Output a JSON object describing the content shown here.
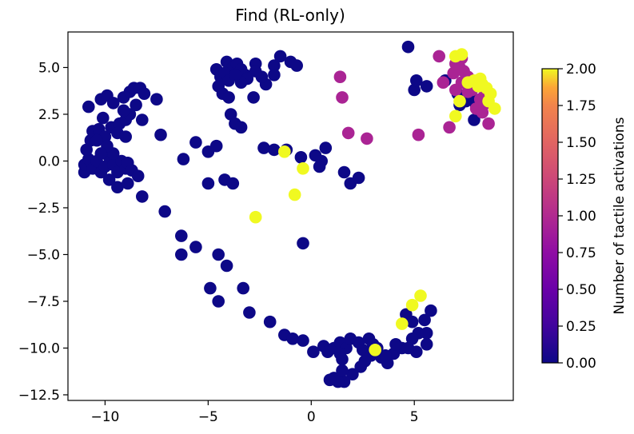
{
  "chart_data": {
    "type": "scatter",
    "title": "Find (RL-only)",
    "xlabel": "",
    "ylabel": "",
    "xlim": [
      -11.8,
      9.8
    ],
    "ylim": [
      -12.8,
      6.9
    ],
    "x_ticks": [
      -10,
      -5,
      0,
      5
    ],
    "x_tick_labels": [
      "−10",
      "−5",
      "0",
      "5"
    ],
    "y_ticks": [
      5.0,
      2.5,
      0.0,
      -2.5,
      -5.0,
      -7.5,
      -10.0,
      -12.5
    ],
    "y_tick_labels": [
      "5.0",
      "2.5",
      "0.0",
      "−2.5",
      "−5.0",
      "−7.5",
      "−10.0",
      "−12.5"
    ],
    "grid": false,
    "colorbar": {
      "label": "Number of tactile activations",
      "range": [
        0.0,
        2.0
      ],
      "ticks": [
        0.0,
        0.25,
        0.5,
        0.75,
        1.0,
        1.25,
        1.5,
        1.75,
        2.0
      ],
      "tick_labels": [
        "0.00",
        "0.25",
        "0.50",
        "0.75",
        "1.00",
        "1.25",
        "1.50",
        "1.75",
        "2.00"
      ],
      "colormap": "plasma"
    },
    "points": [
      {
        "x": -11.0,
        "y": -0.6,
        "c": 0
      },
      {
        "x": -11.0,
        "y": -0.2,
        "c": 0
      },
      {
        "x": -10.8,
        "y": 0.1,
        "c": 0
      },
      {
        "x": -10.6,
        "y": -0.4,
        "c": 0
      },
      {
        "x": -10.4,
        "y": 0.0,
        "c": 0
      },
      {
        "x": -10.2,
        "y": -0.6,
        "c": 0
      },
      {
        "x": -10.0,
        "y": -0.3,
        "c": 0
      },
      {
        "x": -9.8,
        "y": 0.2,
        "c": 0
      },
      {
        "x": -9.6,
        "y": -0.2,
        "c": 0
      },
      {
        "x": -9.4,
        "y": -0.6,
        "c": 0
      },
      {
        "x": -9.2,
        "y": 0.0,
        "c": 0
      },
      {
        "x": -9.0,
        "y": -0.4,
        "c": 0
      },
      {
        "x": -8.9,
        "y": -0.1,
        "c": 0
      },
      {
        "x": -8.7,
        "y": -0.5,
        "c": 0
      },
      {
        "x": -9.8,
        "y": -1.0,
        "c": 0
      },
      {
        "x": -9.4,
        "y": -1.4,
        "c": 0
      },
      {
        "x": -8.9,
        "y": -1.2,
        "c": 0
      },
      {
        "x": -8.4,
        "y": -0.8,
        "c": 0
      },
      {
        "x": -8.2,
        "y": -1.9,
        "c": 0
      },
      {
        "x": -9.6,
        "y": 0.4,
        "c": 0
      },
      {
        "x": -10.9,
        "y": 0.6,
        "c": 0
      },
      {
        "x": -10.7,
        "y": 1.1,
        "c": 0
      },
      {
        "x": -10.6,
        "y": 1.6,
        "c": 0
      },
      {
        "x": -10.3,
        "y": 1.7,
        "c": 0
      },
      {
        "x": -10.0,
        "y": 1.3,
        "c": 0
      },
      {
        "x": -9.7,
        "y": 1.8,
        "c": 0
      },
      {
        "x": -9.3,
        "y": 2.0,
        "c": 0
      },
      {
        "x": -9.0,
        "y": 2.2,
        "c": 0
      },
      {
        "x": -8.8,
        "y": 2.5,
        "c": 0
      },
      {
        "x": -9.1,
        "y": 2.7,
        "c": 0
      },
      {
        "x": -9.4,
        "y": 1.5,
        "c": 0
      },
      {
        "x": -9.0,
        "y": 1.3,
        "c": 0
      },
      {
        "x": -10.4,
        "y": 1.1,
        "c": 0
      },
      {
        "x": -9.9,
        "y": 0.8,
        "c": 0
      },
      {
        "x": -10.2,
        "y": 0.4,
        "c": 0
      },
      {
        "x": -10.8,
        "y": 2.9,
        "c": 0
      },
      {
        "x": -10.2,
        "y": 3.3,
        "c": 0
      },
      {
        "x": -9.9,
        "y": 3.5,
        "c": 0
      },
      {
        "x": -9.6,
        "y": 3.1,
        "c": 0
      },
      {
        "x": -9.1,
        "y": 3.4,
        "c": 0
      },
      {
        "x": -8.8,
        "y": 3.7,
        "c": 0
      },
      {
        "x": -8.6,
        "y": 3.9,
        "c": 0
      },
      {
        "x": -8.3,
        "y": 3.9,
        "c": 0
      },
      {
        "x": -8.1,
        "y": 3.6,
        "c": 0
      },
      {
        "x": -8.5,
        "y": 3.0,
        "c": 0
      },
      {
        "x": -8.2,
        "y": 2.2,
        "c": 0
      },
      {
        "x": -7.5,
        "y": 3.3,
        "c": 0
      },
      {
        "x": -10.1,
        "y": 2.3,
        "c": 0
      },
      {
        "x": -7.3,
        "y": 1.4,
        "c": 0
      },
      {
        "x": -7.1,
        "y": -2.7,
        "c": 0
      },
      {
        "x": -6.2,
        "y": 0.1,
        "c": 0
      },
      {
        "x": -5.6,
        "y": 1.0,
        "c": 0
      },
      {
        "x": -6.3,
        "y": -4.0,
        "c": 0
      },
      {
        "x": -6.3,
        "y": -5.0,
        "c": 0
      },
      {
        "x": -5.6,
        "y": -4.6,
        "c": 0
      },
      {
        "x": -5.0,
        "y": 0.5,
        "c": 0
      },
      {
        "x": -4.6,
        "y": 0.8,
        "c": 0
      },
      {
        "x": -5.0,
        "y": -1.2,
        "c": 0
      },
      {
        "x": -4.2,
        "y": -1.0,
        "c": 0
      },
      {
        "x": -3.8,
        "y": -1.2,
        "c": 0
      },
      {
        "x": -4.9,
        "y": -6.8,
        "c": 0
      },
      {
        "x": -4.5,
        "y": -7.5,
        "c": 0
      },
      {
        "x": -4.5,
        "y": -5.0,
        "c": 0
      },
      {
        "x": -4.1,
        "y": -5.6,
        "c": 0
      },
      {
        "x": -3.3,
        "y": -6.8,
        "c": 0
      },
      {
        "x": -3.0,
        "y": -8.1,
        "c": 0
      },
      {
        "x": -2.0,
        "y": -8.6,
        "c": 0
      },
      {
        "x": -1.3,
        "y": -9.3,
        "c": 0
      },
      {
        "x": -0.9,
        "y": -9.5,
        "c": 0
      },
      {
        "x": -0.4,
        "y": -9.6,
        "c": 0
      },
      {
        "x": -3.9,
        "y": 2.5,
        "c": 0
      },
      {
        "x": -3.7,
        "y": 2.0,
        "c": 0
      },
      {
        "x": -3.4,
        "y": 1.8,
        "c": 0
      },
      {
        "x": -2.8,
        "y": 3.4,
        "c": 0
      },
      {
        "x": -2.3,
        "y": 0.7,
        "c": 0
      },
      {
        "x": -1.8,
        "y": 0.6,
        "c": 0
      },
      {
        "x": -1.2,
        "y": 0.6,
        "c": 0
      },
      {
        "x": -0.5,
        "y": 0.2,
        "c": 0
      },
      {
        "x": 0.2,
        "y": 0.3,
        "c": 0
      },
      {
        "x": 0.5,
        "y": 0.0,
        "c": 0
      },
      {
        "x": 0.7,
        "y": 0.7,
        "c": 0
      },
      {
        "x": 0.4,
        "y": -0.3,
        "c": 0
      },
      {
        "x": 1.6,
        "y": -0.6,
        "c": 0
      },
      {
        "x": 1.9,
        "y": -1.2,
        "c": 0
      },
      {
        "x": 2.3,
        "y": -0.9,
        "c": 0
      },
      {
        "x": -2.2,
        "y": 4.1,
        "c": 0
      },
      {
        "x": -2.4,
        "y": 4.5,
        "c": 0
      },
      {
        "x": -1.8,
        "y": 5.1,
        "c": 0
      },
      {
        "x": -1.5,
        "y": 5.6,
        "c": 0
      },
      {
        "x": -1.8,
        "y": 4.6,
        "c": 0
      },
      {
        "x": -1.0,
        "y": 5.3,
        "c": 0
      },
      {
        "x": -0.7,
        "y": 5.1,
        "c": 0
      },
      {
        "x": -4.6,
        "y": 4.9,
        "c": 0
      },
      {
        "x": -4.4,
        "y": 4.5,
        "c": 0
      },
      {
        "x": -4.5,
        "y": 4.0,
        "c": 0
      },
      {
        "x": -4.3,
        "y": 3.6,
        "c": 0
      },
      {
        "x": -4.0,
        "y": 3.4,
        "c": 0
      },
      {
        "x": -4.1,
        "y": 5.3,
        "c": 0
      },
      {
        "x": -3.8,
        "y": 5.0,
        "c": 0
      },
      {
        "x": -3.6,
        "y": 5.2,
        "c": 0
      },
      {
        "x": -3.4,
        "y": 4.9,
        "c": 0
      },
      {
        "x": -3.2,
        "y": 4.6,
        "c": 0
      },
      {
        "x": -3.1,
        "y": 4.4,
        "c": 0
      },
      {
        "x": -3.4,
        "y": 4.2,
        "c": 0
      },
      {
        "x": -2.7,
        "y": 5.2,
        "c": 0
      },
      {
        "x": -2.7,
        "y": 4.8,
        "c": 0
      },
      {
        "x": -4.2,
        "y": 4.7,
        "c": 0
      },
      {
        "x": -4.0,
        "y": 4.3,
        "c": 0
      },
      {
        "x": -3.7,
        "y": 4.6,
        "c": 0
      },
      {
        "x": 4.7,
        "y": 6.1,
        "c": 0
      },
      {
        "x": 0.6,
        "y": -9.9,
        "c": 0
      },
      {
        "x": 0.8,
        "y": -10.2,
        "c": 0
      },
      {
        "x": 1.1,
        "y": -10.0,
        "c": 0
      },
      {
        "x": 1.4,
        "y": -9.7,
        "c": 0
      },
      {
        "x": 1.7,
        "y": -10.0,
        "c": 0
      },
      {
        "x": 1.4,
        "y": -10.3,
        "c": 0
      },
      {
        "x": 1.5,
        "y": -10.6,
        "c": 0
      },
      {
        "x": 1.9,
        "y": -9.5,
        "c": 0
      },
      {
        "x": 2.3,
        "y": -9.7,
        "c": 0
      },
      {
        "x": 2.5,
        "y": -10.1,
        "c": 0
      },
      {
        "x": 2.8,
        "y": -9.5,
        "c": 0
      },
      {
        "x": 3.0,
        "y": -9.8,
        "c": 0
      },
      {
        "x": 3.2,
        "y": -10.0,
        "c": 0
      },
      {
        "x": 2.9,
        "y": -10.4,
        "c": 0
      },
      {
        "x": 2.6,
        "y": -10.7,
        "c": 0
      },
      {
        "x": 2.4,
        "y": -11.0,
        "c": 0
      },
      {
        "x": 2.0,
        "y": -11.4,
        "c": 0
      },
      {
        "x": 1.6,
        "y": -11.8,
        "c": 0
      },
      {
        "x": 1.3,
        "y": -11.8,
        "c": 0
      },
      {
        "x": 1.1,
        "y": -11.6,
        "c": 0
      },
      {
        "x": 0.9,
        "y": -11.7,
        "c": 0
      },
      {
        "x": 1.5,
        "y": -11.2,
        "c": 0
      },
      {
        "x": 3.4,
        "y": -10.5,
        "c": 0
      },
      {
        "x": 3.7,
        "y": -10.8,
        "c": 0
      },
      {
        "x": 4.0,
        "y": -10.3,
        "c": 0
      },
      {
        "x": 4.4,
        "y": -10.0,
        "c": 0
      },
      {
        "x": 4.1,
        "y": -9.8,
        "c": 0
      },
      {
        "x": 4.6,
        "y": -8.2,
        "c": 0
      },
      {
        "x": 4.9,
        "y": -8.6,
        "c": 0
      },
      {
        "x": 5.2,
        "y": -9.2,
        "c": 0
      },
      {
        "x": 5.5,
        "y": -8.5,
        "c": 0
      },
      {
        "x": 5.6,
        "y": -9.2,
        "c": 0
      },
      {
        "x": 5.1,
        "y": -10.2,
        "c": 0
      },
      {
        "x": 4.7,
        "y": -10.0,
        "c": 0
      },
      {
        "x": 4.9,
        "y": -9.5,
        "c": 0
      },
      {
        "x": 0.1,
        "y": -10.2,
        "c": 0
      },
      {
        "x": 3.6,
        "y": -10.4,
        "c": 0
      },
      {
        "x": -0.4,
        "y": -4.4,
        "c": 0
      },
      {
        "x": 5.6,
        "y": -9.8,
        "c": 0
      },
      {
        "x": 5.8,
        "y": -8.0,
        "c": 0
      },
      {
        "x": 5.0,
        "y": 3.8,
        "c": 0
      },
      {
        "x": 5.1,
        "y": 4.3,
        "c": 0
      },
      {
        "x": 5.6,
        "y": 4.0,
        "c": 0
      },
      {
        "x": 6.5,
        "y": 4.3,
        "c": 0
      },
      {
        "x": 7.1,
        "y": 3.6,
        "c": 0
      },
      {
        "x": 7.5,
        "y": 3.2,
        "c": 0
      },
      {
        "x": 7.2,
        "y": 3.0,
        "c": 0
      },
      {
        "x": 7.8,
        "y": 3.4,
        "c": 0
      },
      {
        "x": 7.9,
        "y": 2.2,
        "c": 0
      },
      {
        "x": 8.0,
        "y": 3.0,
        "c": 0
      },
      {
        "x": 1.4,
        "y": 4.5,
        "c": 0.95
      },
      {
        "x": 1.5,
        "y": 3.4,
        "c": 0.95
      },
      {
        "x": 1.8,
        "y": 1.5,
        "c": 0.95
      },
      {
        "x": 2.7,
        "y": 1.2,
        "c": 0.95
      },
      {
        "x": 5.2,
        "y": 1.4,
        "c": 0.95
      },
      {
        "x": 6.2,
        "y": 5.6,
        "c": 0.95
      },
      {
        "x": 6.7,
        "y": 1.8,
        "c": 0.95
      },
      {
        "x": 6.4,
        "y": 4.2,
        "c": 0.95
      },
      {
        "x": 6.9,
        "y": 4.7,
        "c": 0.95
      },
      {
        "x": 7.0,
        "y": 5.2,
        "c": 0.95
      },
      {
        "x": 7.2,
        "y": 5.0,
        "c": 0.95
      },
      {
        "x": 7.4,
        "y": 4.8,
        "c": 0.95
      },
      {
        "x": 7.6,
        "y": 4.5,
        "c": 0.95
      },
      {
        "x": 7.3,
        "y": 4.2,
        "c": 0.95
      },
      {
        "x": 7.0,
        "y": 3.8,
        "c": 0.95
      },
      {
        "x": 7.6,
        "y": 3.7,
        "c": 0.95
      },
      {
        "x": 7.8,
        "y": 3.8,
        "c": 0.95
      },
      {
        "x": 8.2,
        "y": 3.3,
        "c": 0.95
      },
      {
        "x": 8.4,
        "y": 3.5,
        "c": 0.95
      },
      {
        "x": 8.0,
        "y": 2.8,
        "c": 0.95
      },
      {
        "x": 8.3,
        "y": 2.6,
        "c": 0.95
      },
      {
        "x": 8.6,
        "y": 2.0,
        "c": 0.95
      },
      {
        "x": 8.5,
        "y": 3.1,
        "c": 0.95
      },
      {
        "x": 7.3,
        "y": 5.5,
        "c": 0.95
      },
      {
        "x": -1.3,
        "y": 0.5,
        "c": 2
      },
      {
        "x": -0.8,
        "y": -1.8,
        "c": 2
      },
      {
        "x": -0.4,
        "y": -0.4,
        "c": 2
      },
      {
        "x": -2.7,
        "y": -3.0,
        "c": 2
      },
      {
        "x": 3.1,
        "y": -10.1,
        "c": 2
      },
      {
        "x": 4.4,
        "y": -8.7,
        "c": 2
      },
      {
        "x": 4.9,
        "y": -7.7,
        "c": 2
      },
      {
        "x": 5.3,
        "y": -7.2,
        "c": 2
      },
      {
        "x": 7.0,
        "y": 5.6,
        "c": 2
      },
      {
        "x": 7.3,
        "y": 5.7,
        "c": 2
      },
      {
        "x": 7.0,
        "y": 2.4,
        "c": 2
      },
      {
        "x": 7.6,
        "y": 4.2,
        "c": 2
      },
      {
        "x": 7.9,
        "y": 4.3,
        "c": 2
      },
      {
        "x": 8.1,
        "y": 4.0,
        "c": 2
      },
      {
        "x": 8.3,
        "y": 4.1,
        "c": 2
      },
      {
        "x": 8.5,
        "y": 3.9,
        "c": 2
      },
      {
        "x": 8.7,
        "y": 3.6,
        "c": 2
      },
      {
        "x": 8.6,
        "y": 3.2,
        "c": 2
      },
      {
        "x": 8.9,
        "y": 2.8,
        "c": 2
      },
      {
        "x": 7.2,
        "y": 3.2,
        "c": 2
      },
      {
        "x": 8.2,
        "y": 4.4,
        "c": 2
      }
    ]
  }
}
